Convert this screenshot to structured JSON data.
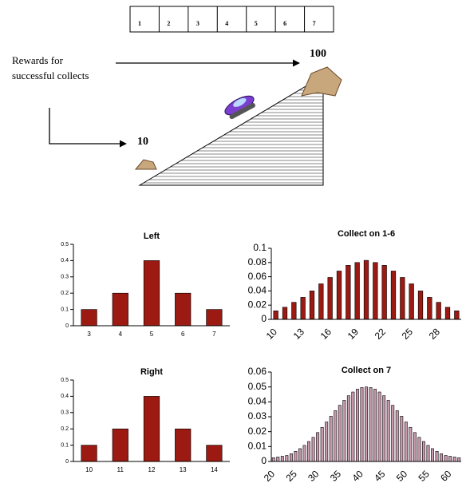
{
  "diagram": {
    "boxes": [
      "1",
      "2",
      "3",
      "4",
      "5",
      "6",
      "7"
    ],
    "label_lines": [
      "Rewards for",
      "successful collects"
    ],
    "high_reward": "100",
    "low_reward": "10"
  },
  "chart_data": [
    {
      "type": "bar",
      "title": "Left",
      "categories": [
        "3",
        "4",
        "5",
        "6",
        "7"
      ],
      "values": [
        0.1,
        0.2,
        0.4,
        0.2,
        0.1
      ],
      "color": "#9c1a12",
      "ylim": [
        0,
        0.5
      ],
      "yticks": [
        0,
        0.1,
        0.2,
        0.3,
        0.4,
        0.5
      ]
    },
    {
      "type": "bar",
      "title": "Collect on 1-6",
      "categories": [
        "10",
        null,
        null,
        "13",
        null,
        null,
        "16",
        null,
        null,
        "19",
        null,
        null,
        "22",
        null,
        null,
        "25",
        null,
        null,
        "28",
        null,
        null
      ],
      "values": [
        0.012,
        0.017,
        0.024,
        0.031,
        0.04,
        0.05,
        0.059,
        0.068,
        0.076,
        0.08,
        0.083,
        0.08,
        0.076,
        0.068,
        0.059,
        0.05,
        0.04,
        0.031,
        0.024,
        0.017,
        0.012
      ],
      "color": "#9c1a12",
      "ylim": [
        0,
        0.1
      ],
      "yticks": [
        0,
        0.02,
        0.04,
        0.06,
        0.08,
        0.1
      ],
      "rotated_labels": true
    },
    {
      "type": "bar",
      "title": "Right",
      "categories": [
        "10",
        "11",
        "12",
        "13",
        "14"
      ],
      "values": [
        0.1,
        0.2,
        0.4,
        0.2,
        0.1
      ],
      "color": "#9c1a12",
      "ylim": [
        0,
        0.5
      ],
      "yticks": [
        0,
        0.1,
        0.2,
        0.3,
        0.4,
        0.5
      ]
    },
    {
      "type": "bar",
      "title": "Collect on 7",
      "categories": [
        "20",
        null,
        null,
        null,
        null,
        "25",
        null,
        null,
        null,
        null,
        "30",
        null,
        null,
        null,
        null,
        "35",
        null,
        null,
        null,
        null,
        "40",
        null,
        null,
        null,
        null,
        "45",
        null,
        null,
        null,
        null,
        "50",
        null,
        null,
        null,
        null,
        "55",
        null,
        null,
        null,
        null,
        "60",
        null,
        null
      ],
      "values": [
        0.0025,
        0.003,
        0.0035,
        0.004,
        0.0052,
        0.0068,
        0.0086,
        0.0108,
        0.0134,
        0.0162,
        0.0194,
        0.0229,
        0.0265,
        0.0303,
        0.0341,
        0.0377,
        0.041,
        0.0441,
        0.0466,
        0.0485,
        0.0496,
        0.05,
        0.0496,
        0.0485,
        0.0466,
        0.0441,
        0.041,
        0.0377,
        0.0341,
        0.0303,
        0.0265,
        0.0229,
        0.0194,
        0.0162,
        0.0134,
        0.0108,
        0.0086,
        0.0068,
        0.0052,
        0.004,
        0.0035,
        0.003,
        0.0025
      ],
      "color": "#c99aae",
      "ylim": [
        0,
        0.06
      ],
      "yticks": [
        0,
        0.01,
        0.02,
        0.03,
        0.04,
        0.05,
        0.06
      ],
      "rotated_labels": true
    }
  ]
}
